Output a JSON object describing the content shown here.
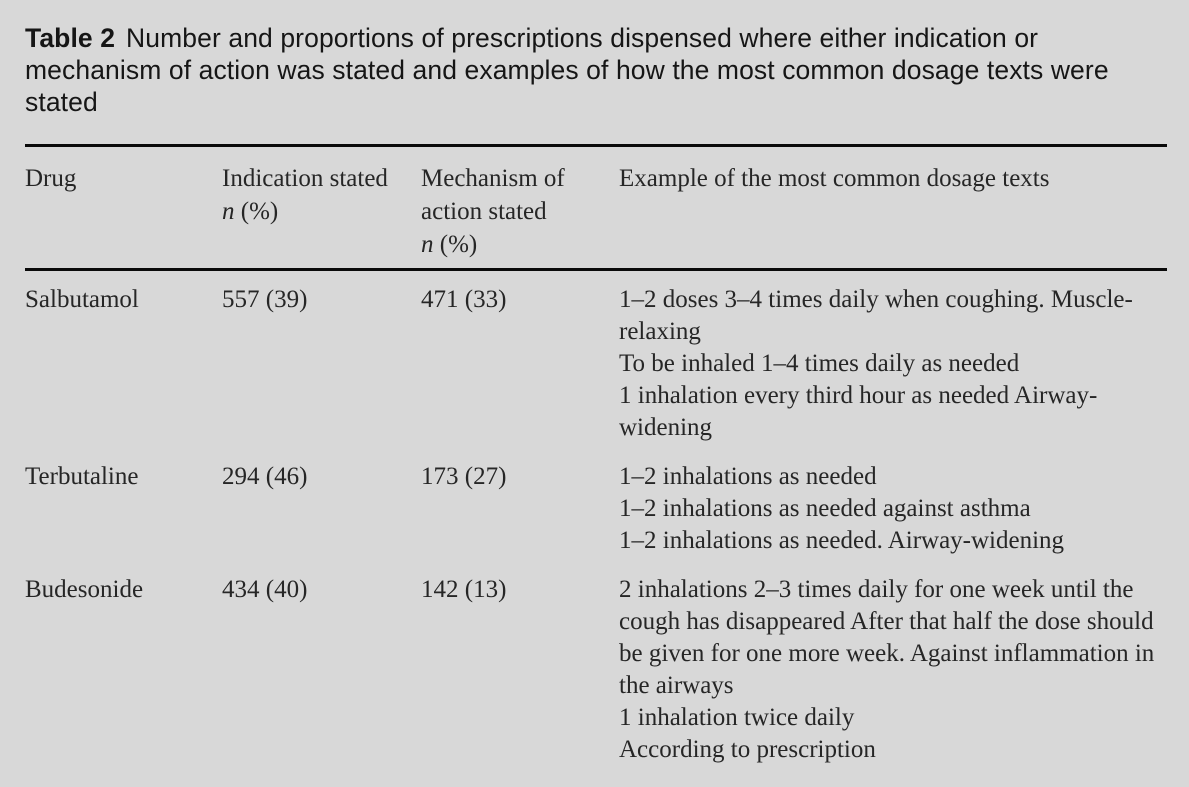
{
  "page": {
    "background_color": "#d8d8d8",
    "rule_color": "#0a0a0a"
  },
  "caption": {
    "label": "Table 2",
    "text": "Number and proportions of prescriptions dispensed where either indication or mechanism of action was stated and examples of how the most common dosage texts were stated"
  },
  "table": {
    "headers": {
      "drug": "Drug",
      "indication": {
        "line1": "Indication stated",
        "n": "n",
        "pct": "(%)"
      },
      "mechanism": {
        "line1": "Mechanism of",
        "line2": "action stated",
        "n": "n",
        "pct": "(%)"
      },
      "examples": "Example of the most common dosage texts"
    },
    "rows": [
      {
        "drug": "Salbutamol",
        "indication_stated": "557 (39)",
        "mechanism_stated": "471 (33)",
        "examples": [
          "1–2 doses 3–4 times daily when coughing. Muscle-relaxing",
          "To be inhaled 1–4 times daily as needed",
          "1 inhalation every third hour as needed Airway-widening"
        ]
      },
      {
        "drug": "Terbutaline",
        "indication_stated": "294 (46)",
        "mechanism_stated": "173 (27)",
        "examples": [
          "1–2 inhalations as needed",
          "1–2 inhalations as needed against asthma",
          "1–2 inhalations as needed. Airway-widening"
        ]
      },
      {
        "drug": "Budesonide",
        "indication_stated": "434 (40)",
        "mechanism_stated": "142 (13)",
        "examples": [
          "2 inhalations 2–3 times daily for one week until the cough has disappeared After that half the dose should be given for one more week. Against inflammation in the airways",
          "1 inhalation twice daily",
          "According to prescription"
        ]
      }
    ]
  }
}
